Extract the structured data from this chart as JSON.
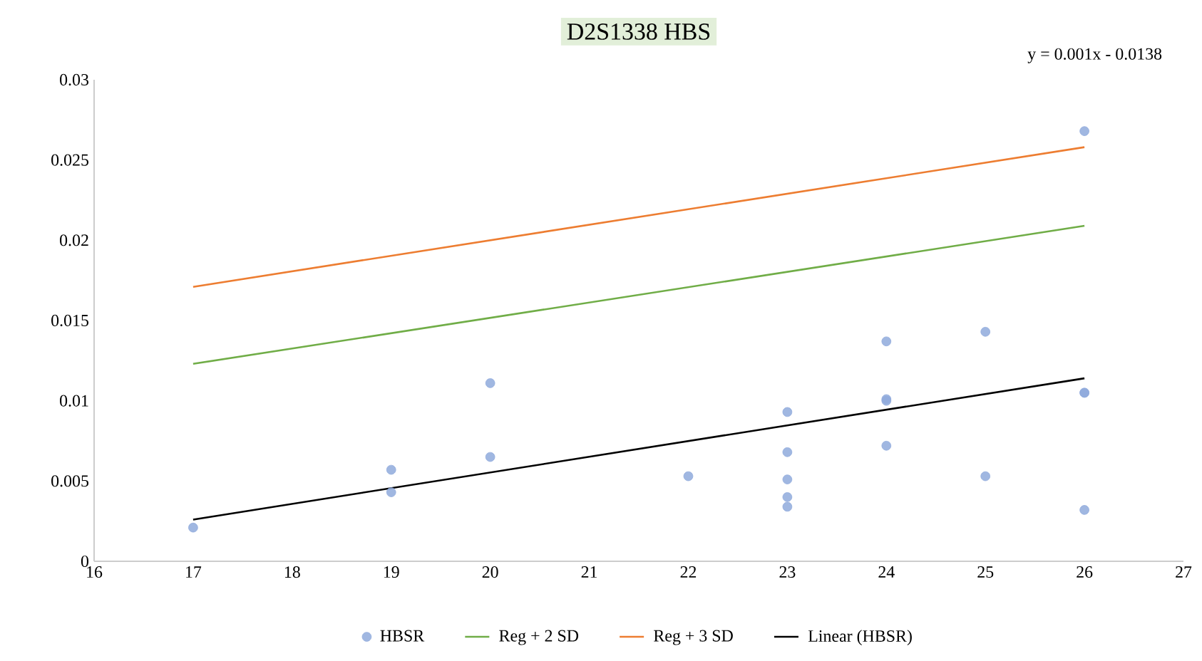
{
  "chart_data": {
    "type": "scatter",
    "title": "D2S1338 HBS",
    "annotations": [
      "y = 0.001x  - 0.0138"
    ],
    "series": [
      {
        "name": "HBSR",
        "color": "#8faadc",
        "x": [
          17,
          19,
          19,
          20,
          20,
          22,
          23,
          23,
          23,
          23,
          23,
          24,
          24,
          24,
          24,
          25,
          25,
          26,
          26,
          26,
          26
        ],
        "values": [
          0.0021,
          0.0057,
          0.0043,
          0.0111,
          0.0065,
          0.0053,
          0.0093,
          0.0068,
          0.0051,
          0.004,
          0.0034,
          0.0137,
          0.0101,
          0.01,
          0.0072,
          0.0143,
          0.0053,
          0.0268,
          0.0105,
          0.0105,
          0.0032
        ]
      },
      {
        "name": "Reg + 2 SD",
        "type": "line",
        "color": "#70ad47",
        "x": [
          17,
          26
        ],
        "values": [
          0.0123,
          0.0209
        ]
      },
      {
        "name": "Reg + 3 SD",
        "type": "line",
        "color": "#ed7d31",
        "x": [
          17,
          26
        ],
        "values": [
          0.0171,
          0.0258
        ]
      },
      {
        "name": "Linear (HBSR)",
        "type": "line",
        "color": "#000000",
        "x": [
          17,
          26
        ],
        "values": [
          0.0026,
          0.0114
        ]
      }
    ],
    "xlim": [
      16,
      27
    ],
    "xticks": [
      16,
      17,
      18,
      19,
      20,
      21,
      22,
      23,
      24,
      25,
      26,
      27
    ],
    "ylim": [
      0,
      0.03
    ],
    "yticks": [
      0,
      0.005,
      0.01,
      0.015,
      0.02,
      0.025,
      0.03
    ],
    "grid": false,
    "legend": "bottom"
  }
}
